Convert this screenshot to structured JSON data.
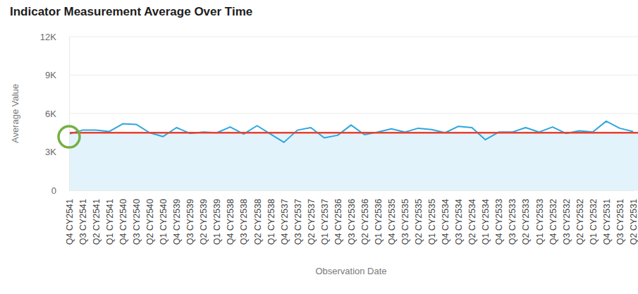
{
  "chart_data": {
    "type": "line",
    "title": "Indicator Measurement Average Over Time",
    "x_label": "Observation Date",
    "y_label": "Average Value",
    "categories": [
      "Q4 CY2541",
      "Q3 CY2541",
      "Q2 CY2541",
      "Q1 CY2541",
      "Q4 CY2540",
      "Q3 CY2540",
      "Q2 CY2540",
      "Q1 CY2540",
      "Q4 CY2539",
      "Q3 CY2539",
      "Q2 CY2539",
      "Q1 CY2539",
      "Q4 CY2538",
      "Q3 CY2538",
      "Q2 CY2538",
      "Q1 CY2538",
      "Q4 CY2537",
      "Q3 CY2537",
      "Q2 CY2537",
      "Q1 CY2537",
      "Q4 CY2536",
      "Q3 CY2536",
      "Q2 CY2536",
      "Q1 CY2536",
      "Q4 CY2535",
      "Q3 CY2535",
      "Q2 CY2535",
      "Q1 CY2535",
      "Q4 CY2534",
      "Q3 CY2534",
      "Q2 CY2534",
      "Q1 CY2534",
      "Q4 CY2533",
      "Q3 CY2533",
      "Q2 CY2533",
      "Q1 CY2533",
      "Q4 CY2532",
      "Q3 CY2532",
      "Q2 CY2532",
      "Q1 CY2532",
      "Q4 CY2531",
      "Q3 CY2531",
      "Q2 CY2531"
    ],
    "values": [
      4400,
      4700,
      4700,
      4600,
      5200,
      5150,
      4500,
      4200,
      4900,
      4450,
      4550,
      4500,
      4950,
      4400,
      5050,
      4400,
      3750,
      4700,
      4900,
      4100,
      4300,
      5100,
      4350,
      4550,
      4800,
      4550,
      4850,
      4750,
      4500,
      5000,
      4900,
      3950,
      4550,
      4550,
      4900,
      4550,
      4950,
      4450,
      4650,
      4550,
      5400,
      4850,
      4600
    ],
    "color": "#2ea6df",
    "ylim": [
      0,
      12000
    ],
    "yticks": [
      0,
      {
        "value": 3000,
        "label": "3K"
      },
      {
        "value": 6000,
        "label": "6K"
      },
      {
        "value": 9000,
        "label": "9K"
      },
      {
        "value": 12000,
        "label": "12K"
      }
    ],
    "grid": true,
    "reference_lines": [
      {
        "value": 4500,
        "color": "#e8402f",
        "fill": "#e3f3fb"
      }
    ],
    "annotations": [
      {
        "x": "Q4 CY2541",
        "marker": "circle",
        "color": "#76b043"
      }
    ]
  }
}
